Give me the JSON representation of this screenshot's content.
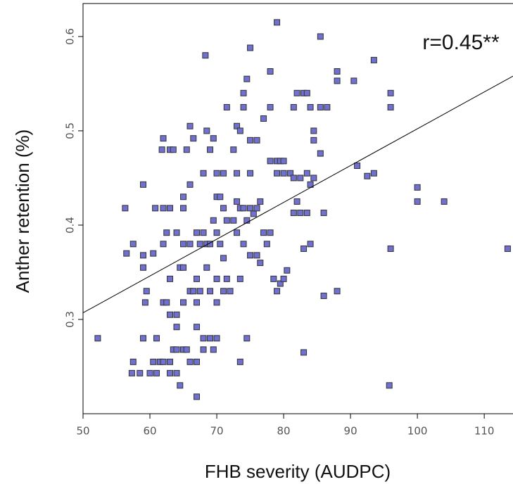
{
  "chart_data": {
    "type": "scatter",
    "x_label": "FHB severity (AUDPC)",
    "y_label": "Anther retention (%)",
    "annotation": "r=0.45**",
    "color": "#7070d0",
    "xlim": [
      50,
      114.3
    ],
    "ylim": [
      0.2,
      0.635
    ],
    "xticks": [
      50,
      60,
      70,
      80,
      90,
      100,
      110
    ],
    "yticks": [
      0.3,
      0.4,
      0.5,
      0.6
    ],
    "trend_line": {
      "x": [
        50,
        114.3
      ],
      "y": [
        0.307,
        0.558
      ]
    },
    "x": [
      52.2,
      56.3,
      56.5,
      57.5,
      57.5,
      57.3,
      58.5,
      59,
      59,
      59,
      59.5,
      59.3,
      59,
      60,
      60.5,
      60.5,
      60.8,
      61,
      61,
      61.5,
      61.8,
      62,
      62,
      62,
      62,
      62,
      62.5,
      62.5,
      63,
      63,
      63,
      63,
      63,
      63,
      63.5,
      63.5,
      64,
      64,
      64,
      64,
      64,
      64.5,
      64.5,
      65,
      65,
      65,
      65,
      65,
      65,
      65.5,
      65.5,
      66,
      66,
      66,
      66,
      66,
      66.5,
      66.5,
      67,
      67,
      67,
      67,
      67,
      67,
      67.5,
      67.5,
      68,
      68,
      68,
      68,
      68.3,
      68.5,
      68.5,
      68.5,
      69,
      69,
      69,
      69,
      69.5,
      69.5,
      69.5,
      70,
      70,
      70,
      70,
      70,
      70,
      70.5,
      70.5,
      71,
      71,
      71,
      71,
      71.5,
      71.5,
      71.5,
      72,
      72.5,
      72.5,
      73,
      73,
      73,
      73,
      73.5,
      73.5,
      73.5,
      73.5,
      74,
      74,
      74,
      74,
      74.5,
      74.5,
      74.5,
      75,
      75,
      75,
      75,
      75,
      75.5,
      76,
      76,
      76,
      76.5,
      76.5,
      77,
      77,
      77.5,
      78,
      78,
      78,
      78,
      78.5,
      79,
      79,
      79,
      79,
      79.5,
      79.5,
      80,
      80,
      80,
      80.5,
      81,
      81.5,
      81.5,
      81.5,
      82,
      82,
      82.5,
      82.5,
      83,
      83,
      83,
      83.5,
      83.5,
      83.5,
      84,
      84,
      84,
      84.5,
      84.5,
      84.5,
      85.5,
      85.5,
      85.5,
      86,
      86,
      86.5,
      88,
      88,
      88,
      90.5,
      91,
      92.5,
      93.5,
      93.5,
      96,
      96,
      96,
      95.8,
      100,
      100,
      104,
      113.5
    ],
    "values": [
      0.28,
      0.418,
      0.37,
      0.38,
      0.255,
      0.243,
      0.243,
      0.443,
      0.355,
      0.368,
      0.33,
      0.318,
      0.28,
      0.243,
      0.37,
      0.255,
      0.418,
      0.28,
      0.243,
      0.255,
      0.48,
      0.492,
      0.418,
      0.38,
      0.318,
      0.255,
      0.392,
      0.318,
      0.48,
      0.418,
      0.343,
      0.305,
      0.255,
      0.243,
      0.48,
      0.268,
      0.392,
      0.305,
      0.292,
      0.268,
      0.243,
      0.355,
      0.23,
      0.418,
      0.38,
      0.355,
      0.318,
      0.268,
      0.43,
      0.48,
      0.268,
      0.505,
      0.443,
      0.38,
      0.33,
      0.255,
      0.492,
      0.33,
      0.392,
      0.343,
      0.318,
      0.292,
      0.255,
      0.218,
      0.38,
      0.33,
      0.392,
      0.268,
      0.28,
      0.455,
      0.58,
      0.5,
      0.38,
      0.355,
      0.48,
      0.38,
      0.33,
      0.28,
      0.492,
      0.405,
      0.268,
      0.455,
      0.43,
      0.392,
      0.343,
      0.318,
      0.28,
      0.43,
      0.38,
      0.455,
      0.418,
      0.365,
      0.33,
      0.525,
      0.405,
      0.343,
      0.33,
      0.405,
      0.48,
      0.425,
      0.392,
      0.505,
      0.455,
      0.5,
      0.418,
      0.343,
      0.255,
      0.54,
      0.525,
      0.418,
      0.38,
      0.555,
      0.405,
      0.28,
      0.588,
      0.49,
      0.455,
      0.418,
      0.368,
      0.412,
      0.49,
      0.418,
      0.368,
      0.425,
      0.36,
      0.513,
      0.392,
      0.38,
      0.563,
      0.525,
      0.468,
      0.392,
      0.343,
      0.615,
      0.468,
      0.455,
      0.33,
      0.468,
      0.338,
      0.468,
      0.343,
      0.455,
      0.352,
      0.455,
      0.525,
      0.413,
      0.45,
      0.54,
      0.425,
      0.45,
      0.413,
      0.54,
      0.375,
      0.265,
      0.54,
      0.455,
      0.413,
      0.443,
      0.38,
      0.525,
      0.5,
      0.49,
      0.45,
      0.6,
      0.525,
      0.476,
      0.413,
      0.325,
      0.525,
      0.563,
      0.553,
      0.33,
      0.553,
      0.463,
      0.452,
      0.575,
      0.455,
      0.54,
      0.525,
      0.375,
      0.23,
      0.44,
      0.425,
      0.425,
      0.375
    ]
  }
}
